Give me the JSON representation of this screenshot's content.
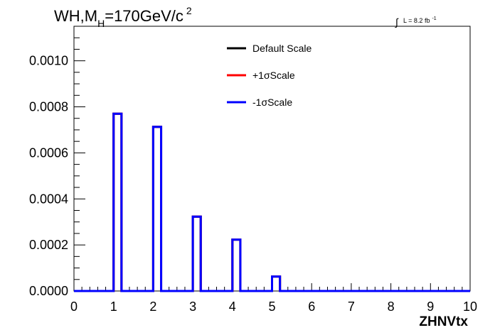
{
  "chart_data": {
    "type": "line",
    "title_parts": {
      "pre": "WH,M",
      "sub": "H",
      "mid": "=170GeV/c",
      "sup": "2"
    },
    "lumi": {
      "integral": "∫",
      "text": "L = 8.2 fb",
      "sup": "-1"
    },
    "xlabel": "ZHNVtx",
    "ylabel": "",
    "xlim": [
      0,
      10
    ],
    "ylim": [
      0,
      0.00115
    ],
    "x_ticks": [
      "0",
      "1",
      "2",
      "3",
      "4",
      "5",
      "6",
      "7",
      "8",
      "9",
      "10"
    ],
    "y_ticks": [
      "0.0000",
      "0.0002",
      "0.0004",
      "0.0006",
      "0.0008",
      "0.0010"
    ],
    "bin_width": 0.2,
    "series": [
      {
        "name": "Default Scale",
        "color": "#000000",
        "bin_lows": [
          1,
          2,
          3,
          4,
          5
        ],
        "values": [
          0.00077,
          0.000713,
          0.000323,
          0.000223,
          6.3e-05
        ]
      },
      {
        "name": "+1σScale",
        "color": "#ff0000",
        "bin_lows": [
          1,
          2,
          3,
          4,
          5
        ],
        "values": [
          0.00077,
          0.000713,
          0.000323,
          0.000223,
          6.3e-05
        ]
      },
      {
        "name": "-1σScale",
        "color": "#0000ff",
        "bin_lows": [
          1,
          2,
          3,
          4,
          5
        ],
        "values": [
          0.00077,
          0.000713,
          0.000323,
          0.000223,
          6.3e-05
        ]
      }
    ],
    "legend_placement": "top-center",
    "grid": false
  }
}
